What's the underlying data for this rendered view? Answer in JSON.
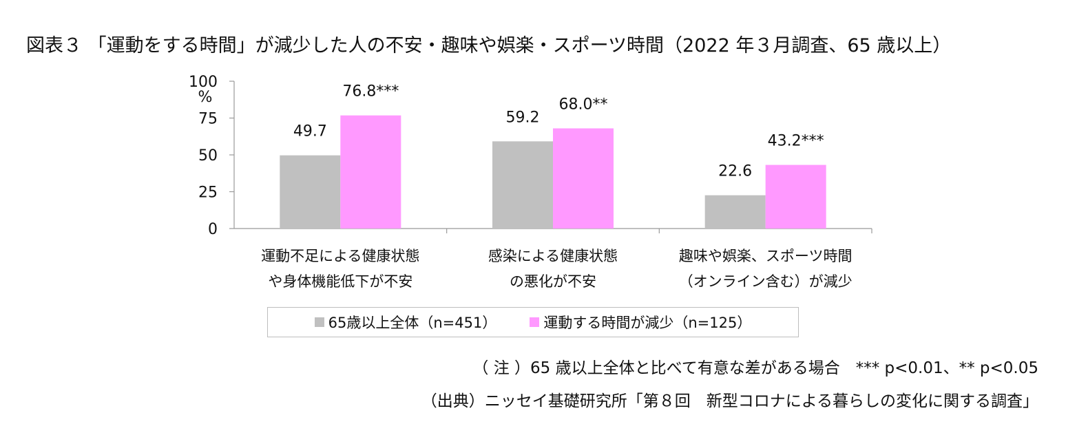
{
  "title": "図表３ 「運動をする時間」が減少した人の不安・趣味や娯楽・スポーツ時間（2022 年３月調査、65 歳以上）",
  "note": "（ 注 ）65 歳以上全体と比べて有意な差がある場合　*** p<0.01、** p<0.05",
  "source": "（出典）ニッセイ基礎研究所「第８回　新型コロナによる暮らしの変化に関する調査」",
  "colors": {
    "series0": "#c0c0c0",
    "series1": "#ff99ff",
    "axis": "#999999"
  },
  "chart_data": {
    "type": "bar",
    "categories": [
      [
        "運動不足による健康状態",
        "や身体機能低下が不安"
      ],
      [
        "感染による健康状態",
        "の悪化が不安"
      ],
      [
        "趣味や娯楽、スポーツ時間",
        "（オンライン含む）が減少"
      ]
    ],
    "series": [
      {
        "name": "65歳以上全体（n=451）",
        "values": [
          49.7,
          59.2,
          22.6
        ],
        "labels": [
          "49.7",
          "59.2",
          "22.6"
        ]
      },
      {
        "name": "運動する時間が減少（n=125）",
        "values": [
          76.8,
          68.0,
          43.2
        ],
        "labels": [
          "76.8***",
          "68.0**",
          "43.2***"
        ]
      }
    ],
    "ylim": [
      0,
      100
    ],
    "yticks": [
      "0",
      "25",
      "50",
      "75",
      "100"
    ],
    "ytick_values": [
      0,
      25,
      50,
      75,
      100
    ],
    "yunit": "%",
    "grid": false,
    "legend": "bottom"
  }
}
